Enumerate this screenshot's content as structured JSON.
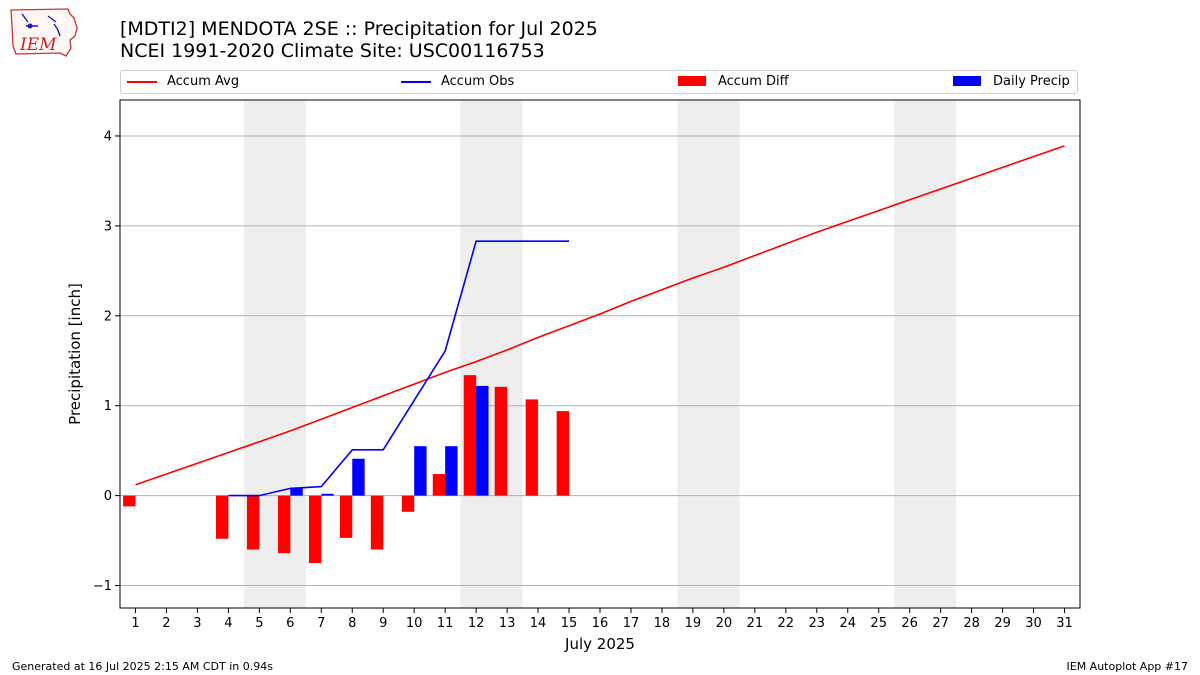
{
  "header": {
    "title_line1": "[MDTI2] MENDOTA 2SE :: Precipitation for Jul 2025",
    "title_line2": "NCEI 1991-2020 Climate Site: USC00116753"
  },
  "logo": {
    "text": "IEM",
    "icon": "iowa-state-outline-logo"
  },
  "footer": {
    "left": "Generated at 16 Jul 2025 2:15 AM CDT in 0.94s",
    "right": "IEM Autoplot App #17"
  },
  "colors": {
    "avg": "#ff0000",
    "obs": "#0000ff",
    "diff": "#ff0000",
    "daily": "#0000ff",
    "weekend_band": "#eeeeee",
    "grid": "#b0b0b0"
  },
  "chart_data": {
    "type": "bar",
    "xlabel": "July 2025",
    "ylabel": "Precipitation [inch]",
    "xlim": [
      0.5,
      31.5
    ],
    "ylim": [
      -1.25,
      4.4
    ],
    "yticks": [
      -1,
      0,
      1,
      2,
      3,
      4
    ],
    "ytick_labels": [
      "−1",
      "0",
      "1",
      "2",
      "3",
      "4"
    ],
    "days": [
      1,
      2,
      3,
      4,
      5,
      6,
      7,
      8,
      9,
      10,
      11,
      12,
      13,
      14,
      15,
      16,
      17,
      18,
      19,
      20,
      21,
      22,
      23,
      24,
      25,
      26,
      27,
      28,
      29,
      30,
      31
    ],
    "weekend_bands": [
      [
        4.5,
        6.5
      ],
      [
        11.5,
        13.5
      ],
      [
        18.5,
        20.5
      ],
      [
        25.5,
        27.5
      ]
    ],
    "grid": "horizontal",
    "legend_placement": "top",
    "series": [
      {
        "name": "Accum Avg",
        "kind": "line",
        "color": "#ff0000",
        "x": [
          1,
          2,
          3,
          4,
          5,
          6,
          7,
          8,
          9,
          10,
          11,
          12,
          13,
          14,
          15,
          16,
          17,
          18,
          19,
          20,
          21,
          22,
          23,
          24,
          25,
          26,
          27,
          28,
          29,
          30,
          31
        ],
        "values": [
          0.12,
          0.24,
          0.36,
          0.48,
          0.6,
          0.72,
          0.85,
          0.98,
          1.11,
          1.24,
          1.37,
          1.49,
          1.62,
          1.76,
          1.89,
          2.02,
          2.16,
          2.29,
          2.42,
          2.54,
          2.67,
          2.8,
          2.93,
          3.05,
          3.17,
          3.29,
          3.41,
          3.53,
          3.65,
          3.77,
          3.89
        ]
      },
      {
        "name": "Accum Obs",
        "kind": "line",
        "color": "#0000ff",
        "x": [
          4,
          5,
          6,
          7,
          8,
          9,
          10,
          11,
          12,
          13,
          14,
          15
        ],
        "values": [
          0.0,
          0.0,
          0.08,
          0.1,
          0.51,
          0.51,
          1.06,
          1.61,
          2.83,
          2.83,
          2.83,
          2.83
        ]
      },
      {
        "name": "Accum Diff",
        "kind": "bar",
        "color": "#ff0000",
        "x": [
          1,
          4,
          5,
          6,
          7,
          8,
          9,
          10,
          11,
          12,
          13,
          14,
          15
        ],
        "values": [
          -0.12,
          -0.48,
          -0.6,
          -0.64,
          -0.75,
          -0.47,
          -0.6,
          -0.18,
          0.24,
          1.34,
          1.21,
          1.07,
          0.94
        ]
      },
      {
        "name": "Daily Precip",
        "kind": "bar",
        "color": "#0000ff",
        "x": [
          6,
          7,
          8,
          10,
          11,
          12
        ],
        "values": [
          0.08,
          0.02,
          0.41,
          0.55,
          0.55,
          1.22
        ]
      }
    ]
  }
}
